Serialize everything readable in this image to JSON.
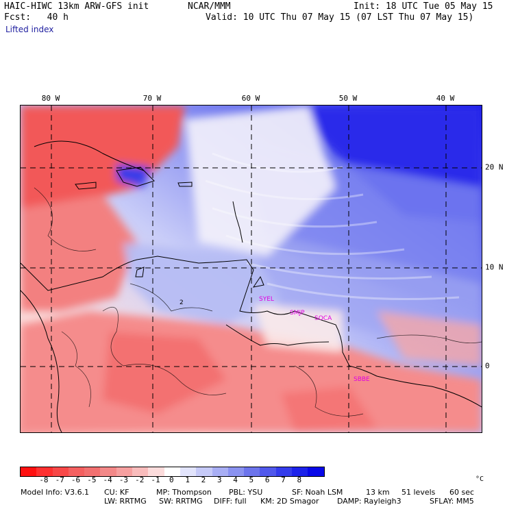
{
  "header": {
    "model": "HAIC-HIWC 13km ARW-GFS init",
    "org": "NCAR/MMM",
    "fcst": "Fcst:   40 h",
    "init": "Init: 18 UTC Tue 05 May 15",
    "valid": "Valid: 10 UTC Thu 07 May 15 (07 LST Thu 07 May 15)",
    "field": "Lifted index"
  },
  "map": {
    "lon_labels": [
      "80 W",
      "70 W",
      "60 W",
      "50 W",
      "40 W"
    ],
    "lat_labels": [
      "20 N",
      "10 N",
      "0"
    ],
    "stations": [
      "SYEL",
      "SMJP",
      "SOCA",
      "SBBE"
    ],
    "contour_label": "2",
    "colors": {
      "neg_strong": "#f03c3c",
      "neg_mid": "#f58080",
      "neg_light": "#fac0c0",
      "pos_light": "#d0d4fa",
      "pos_mid": "#8890f2",
      "pos_strong": "#1a1ae8"
    }
  },
  "colorbar": {
    "ticks": [
      "-8",
      "-7",
      "-6",
      "-5",
      "-4",
      "-3",
      "-2",
      "-1",
      "0",
      "1",
      "2",
      "3",
      "4",
      "5",
      "6",
      "7",
      "8"
    ],
    "unit": "°C",
    "colors": [
      "#ff1010",
      "#ff3030",
      "#f84848",
      "#f46060",
      "#f27070",
      "#f38888",
      "#f6a0a0",
      "#f9bcbc",
      "#fcdcdc",
      "#ffffff",
      "#e2e4fc",
      "#c6caf8",
      "#a8aef4",
      "#8a92f0",
      "#6c74ec",
      "#5058ec",
      "#343cec",
      "#1c22ea",
      "#0808e8"
    ]
  },
  "footer": {
    "line1_model": "Model Info: V3.6.1",
    "line1_cu": "CU: KF",
    "line1_mp": "MP: Thompson",
    "line1_pbl": "PBL: YSU",
    "line1_sf": "SF: Noah LSM",
    "line1_res": "13 km",
    "line1_levels": "51 levels",
    "line1_dt": "60 sec",
    "line2_lw": "LW: RRTMG",
    "line2_sw": "SW: RRTMG",
    "line2_diff": "DIFF: full",
    "line2_km": "KM: 2D Smagor",
    "line2_damp": "DAMP: Rayleigh3",
    "line2_sflay": "SFLAY: MM5"
  }
}
